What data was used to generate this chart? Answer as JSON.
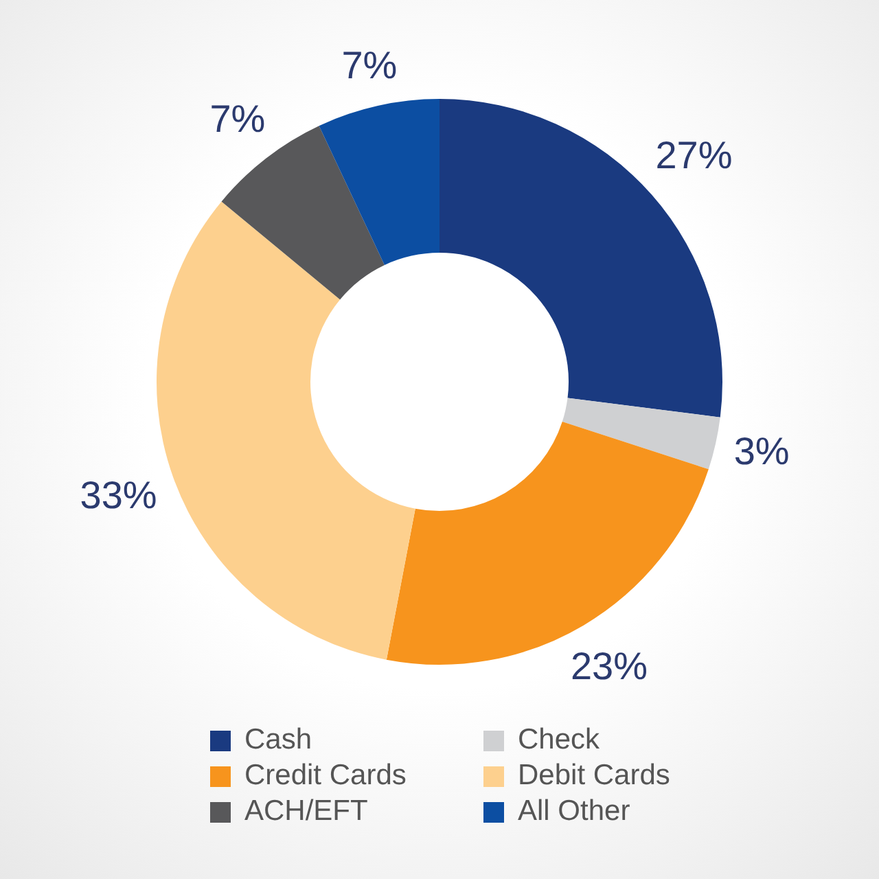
{
  "chart_data": {
    "type": "donut",
    "categories": [
      "Cash",
      "Check",
      "Credit Cards",
      "Debit Cards",
      "ACH/EFT",
      "All Other"
    ],
    "values": [
      27,
      3,
      23,
      33,
      7,
      7
    ],
    "colors": [
      "#1a3a80",
      "#cfd0d2",
      "#f7941d",
      "#fdd08e",
      "#58585a",
      "#0c4ea2"
    ],
    "value_labels": [
      "27%",
      "3%",
      "23%",
      "33%",
      "7%",
      "7%"
    ],
    "legend": "bottom"
  }
}
